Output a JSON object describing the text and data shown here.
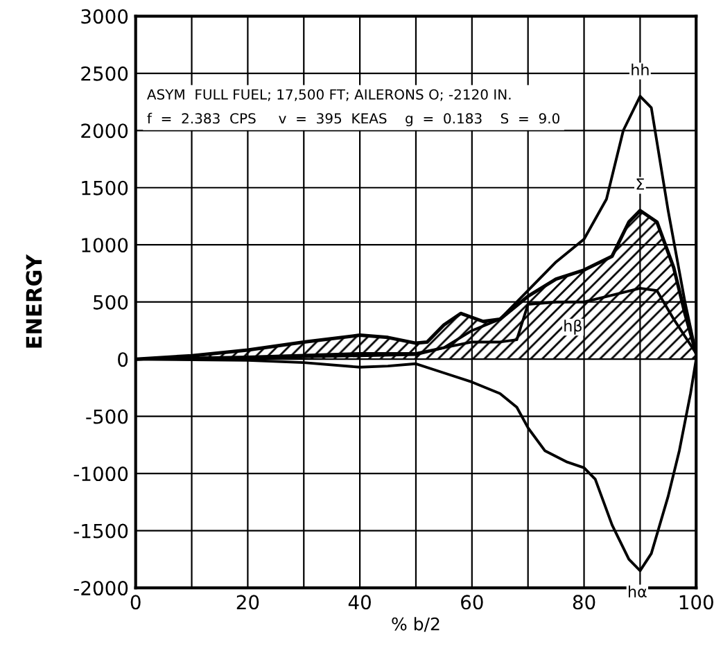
{
  "chart_data": {
    "type": "line",
    "xlabel": "% b/2",
    "ylabel": "ENERGY",
    "annotations": [
      "ASYM  FULL FUEL; 17,500 FT; AILERONS O; -2120 IN.\nf  =  2.383  CPS     v  =  395  KEAS    g  =  0.183    S  =  9.0"
    ],
    "xlim": [
      0,
      100
    ],
    "ylim": [
      -2000,
      3000
    ],
    "xticks": [
      0,
      {
        "value": 10,
        "label": null
      },
      20,
      {
        "value": 30,
        "label": null
      },
      40,
      {
        "value": 50,
        "label": null
      },
      60,
      {
        "value": 70,
        "label": null
      },
      80,
      {
        "value": 90,
        "label": null
      },
      100
    ],
    "yticks": [
      -2000,
      -1500,
      -1000,
      -500,
      0,
      500,
      1000,
      1500,
      2000,
      2500,
      3000
    ],
    "grid": true,
    "legend": false,
    "series": [
      {
        "name": "hh",
        "color": "#000000",
        "x": [
          0,
          20,
          40,
          50,
          55,
          60,
          65,
          70,
          75,
          80,
          84,
          87,
          90,
          92,
          95,
          98,
          100
        ],
        "values": [
          0,
          20,
          50,
          50,
          100,
          250,
          350,
          600,
          850,
          1050,
          1400,
          2000,
          2300,
          2200,
          1300,
          500,
          50
        ]
      },
      {
        "name": "Σ",
        "type": "area",
        "color": "#000000",
        "x": [
          0,
          10,
          20,
          30,
          40,
          45,
          50,
          52,
          55,
          58,
          62,
          65,
          70,
          75,
          80,
          85,
          88,
          90,
          93,
          96,
          98,
          100
        ],
        "values": [
          0,
          30,
          80,
          150,
          210,
          190,
          140,
          150,
          300,
          400,
          330,
          350,
          550,
          700,
          780,
          900,
          1200,
          1300,
          1200,
          800,
          400,
          50
        ]
      },
      {
        "name": "hβ",
        "color": "#000000",
        "x": [
          0,
          20,
          40,
          50,
          55,
          60,
          65,
          68,
          70,
          75,
          80,
          85,
          90,
          93,
          96,
          100
        ],
        "values": [
          0,
          10,
          30,
          40,
          100,
          150,
          150,
          170,
          480,
          500,
          500,
          560,
          620,
          600,
          350,
          50
        ]
      },
      {
        "name": "hα",
        "color": "#000000",
        "x": [
          0,
          20,
          30,
          40,
          45,
          50,
          55,
          60,
          65,
          68,
          70,
          73,
          77,
          80,
          82,
          85,
          88,
          90,
          92,
          95,
          97,
          99,
          100
        ],
        "values": [
          0,
          -10,
          -30,
          -70,
          -60,
          -40,
          -120,
          -200,
          -300,
          -420,
          -600,
          -800,
          -900,
          -950,
          -1050,
          -1450,
          -1750,
          -1850,
          -1700,
          -1200,
          -800,
          -300,
          0
        ]
      }
    ]
  }
}
